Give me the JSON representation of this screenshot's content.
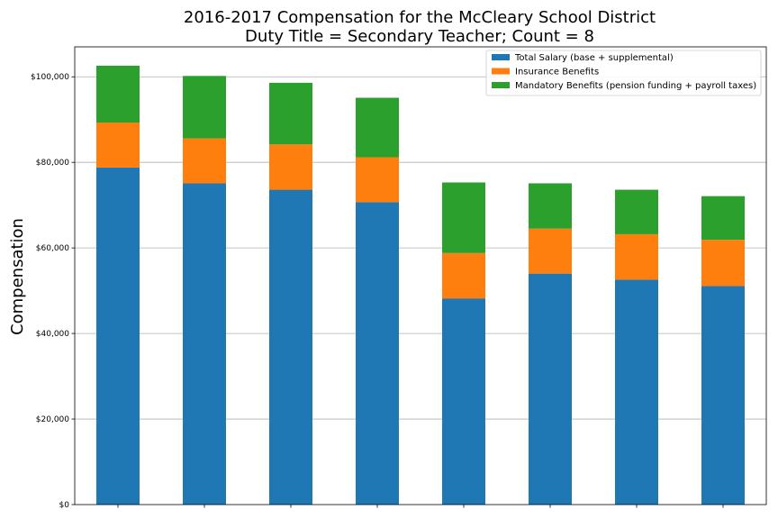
{
  "chart_data": {
    "type": "bar",
    "stacked": true,
    "title": "2016-2017 Compensation for the McCleary School District",
    "subtitle": "Duty Title = Secondary Teacher; Count = 8",
    "ylabel": "Compensation",
    "xlabel": "",
    "ylim": [
      0,
      107000
    ],
    "yticks": [
      0,
      20000,
      40000,
      60000,
      80000,
      100000
    ],
    "ytick_labels": [
      "$0",
      "$20,000",
      "$40,000",
      "$60,000",
      "$80,000",
      "$100,000"
    ],
    "grid": "horizontal",
    "legend_position": "top-right",
    "categories": [
      "",
      "",
      "",
      "",
      "",
      "",
      "",
      ""
    ],
    "series": [
      {
        "name": "Total Salary (base + supplemental)",
        "color": "#1f77b4",
        "values": [
          78800,
          75100,
          73600,
          70700,
          48200,
          54000,
          52600,
          51100
        ]
      },
      {
        "name": "Insurance Benefits",
        "color": "#ff7f0e",
        "values": [
          10500,
          10500,
          10600,
          10500,
          10600,
          10500,
          10600,
          10800
        ]
      },
      {
        "name": "Mandatory Benefits (pension funding + payroll taxes)",
        "color": "#2ca02c",
        "values": [
          13300,
          14600,
          14400,
          13900,
          16500,
          10600,
          10400,
          10200
        ]
      }
    ]
  }
}
